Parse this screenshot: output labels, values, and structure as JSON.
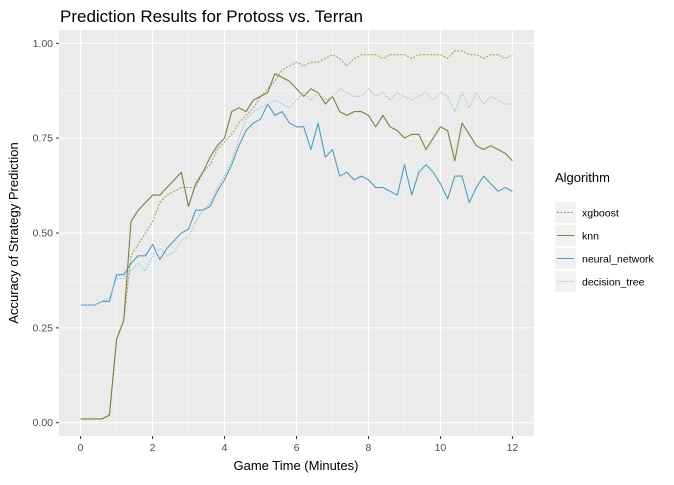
{
  "chart_data": {
    "type": "line",
    "title": "Prediction Results for Protoss vs. Terran",
    "xlabel": "Game Time (Minutes)",
    "ylabel": "Accuracy of Strategy Prediction",
    "xlim": [
      -0.6,
      12.6
    ],
    "ylim": [
      -0.035,
      1.035
    ],
    "x_ticks": [
      0,
      2,
      4,
      6,
      8,
      10,
      12
    ],
    "y_ticks": [
      0.0,
      0.25,
      0.5,
      0.75,
      1.0
    ],
    "x_tick_labels": [
      "0",
      "2",
      "4",
      "6",
      "8",
      "10",
      "12"
    ],
    "y_tick_labels": [
      "0.00",
      "0.25",
      "0.50",
      "0.75",
      "1.00"
    ],
    "grid": true,
    "legend": {
      "title": "Algorithm",
      "position": "right"
    },
    "series": [
      {
        "name": "xgboost",
        "color": "#a3a65a",
        "dash": "2,1.5",
        "x": [
          0,
          0.2,
          0.4,
          0.6,
          0.8,
          1.0,
          1.2,
          1.4,
          1.6,
          1.8,
          2.0,
          2.2,
          2.4,
          2.6,
          2.8,
          3.0,
          3.2,
          3.4,
          3.6,
          3.8,
          4.0,
          4.2,
          4.4,
          4.6,
          4.8,
          5.0,
          5.2,
          5.4,
          5.6,
          5.8,
          6.0,
          6.2,
          6.4,
          6.6,
          6.8,
          7.0,
          7.2,
          7.4,
          7.6,
          7.8,
          8.0,
          8.2,
          8.4,
          8.6,
          8.8,
          9.0,
          9.2,
          9.4,
          9.6,
          9.8,
          10.0,
          10.2,
          10.4,
          10.6,
          10.8,
          11.0,
          11.2,
          11.4,
          11.6,
          11.8,
          12.0
        ],
        "values": [
          0.01,
          0.01,
          0.01,
          0.01,
          0.02,
          0.22,
          0.27,
          0.44,
          0.47,
          0.5,
          0.53,
          0.58,
          0.6,
          0.61,
          0.62,
          0.62,
          0.62,
          0.66,
          0.68,
          0.72,
          0.74,
          0.76,
          0.79,
          0.81,
          0.83,
          0.86,
          0.88,
          0.9,
          0.93,
          0.94,
          0.95,
          0.94,
          0.95,
          0.95,
          0.96,
          0.97,
          0.96,
          0.94,
          0.96,
          0.97,
          0.97,
          0.97,
          0.96,
          0.97,
          0.97,
          0.97,
          0.96,
          0.97,
          0.97,
          0.97,
          0.97,
          0.96,
          0.98,
          0.98,
          0.97,
          0.97,
          0.96,
          0.97,
          0.97,
          0.96,
          0.97
        ]
      },
      {
        "name": "knn",
        "color": "#7d7f3e",
        "dash": "",
        "x": [
          0,
          0.2,
          0.4,
          0.6,
          0.8,
          1.0,
          1.2,
          1.4,
          1.6,
          1.8,
          2.0,
          2.2,
          2.4,
          2.6,
          2.8,
          3.0,
          3.2,
          3.4,
          3.6,
          3.8,
          4.0,
          4.2,
          4.4,
          4.6,
          4.8,
          5.0,
          5.2,
          5.4,
          5.6,
          5.8,
          6.0,
          6.2,
          6.4,
          6.6,
          6.8,
          7.0,
          7.2,
          7.4,
          7.6,
          7.8,
          8.0,
          8.2,
          8.4,
          8.6,
          8.8,
          9.0,
          9.2,
          9.4,
          9.6,
          9.8,
          10.0,
          10.2,
          10.4,
          10.6,
          10.8,
          11.0,
          11.2,
          11.4,
          11.6,
          11.8,
          12.0
        ],
        "values": [
          0.01,
          0.01,
          0.01,
          0.01,
          0.02,
          0.22,
          0.27,
          0.53,
          0.56,
          0.58,
          0.6,
          0.6,
          0.62,
          0.64,
          0.66,
          0.57,
          0.63,
          0.66,
          0.7,
          0.73,
          0.75,
          0.82,
          0.83,
          0.82,
          0.85,
          0.86,
          0.87,
          0.92,
          0.91,
          0.9,
          0.88,
          0.86,
          0.88,
          0.87,
          0.84,
          0.86,
          0.82,
          0.81,
          0.82,
          0.82,
          0.81,
          0.78,
          0.81,
          0.78,
          0.77,
          0.75,
          0.76,
          0.76,
          0.72,
          0.75,
          0.78,
          0.77,
          0.69,
          0.79,
          0.76,
          0.73,
          0.72,
          0.73,
          0.72,
          0.71,
          0.69
        ]
      },
      {
        "name": "neural_network",
        "color": "#4a9fbf",
        "dash": "",
        "x": [
          0,
          0.2,
          0.4,
          0.6,
          0.8,
          1.0,
          1.2,
          1.4,
          1.6,
          1.8,
          2.0,
          2.2,
          2.4,
          2.6,
          2.8,
          3.0,
          3.2,
          3.4,
          3.6,
          3.8,
          4.0,
          4.2,
          4.4,
          4.6,
          4.8,
          5.0,
          5.2,
          5.4,
          5.6,
          5.8,
          6.0,
          6.2,
          6.4,
          6.6,
          6.8,
          7.0,
          7.2,
          7.4,
          7.6,
          7.8,
          8.0,
          8.2,
          8.4,
          8.6,
          8.8,
          9.0,
          9.2,
          9.4,
          9.6,
          9.8,
          10.0,
          10.2,
          10.4,
          10.6,
          10.8,
          11.0,
          11.2,
          11.4,
          11.6,
          11.8,
          12.0
        ],
        "values": [
          0.31,
          0.31,
          0.31,
          0.32,
          0.32,
          0.39,
          0.39,
          0.42,
          0.44,
          0.44,
          0.47,
          0.43,
          0.46,
          0.48,
          0.5,
          0.51,
          0.56,
          0.56,
          0.57,
          0.61,
          0.64,
          0.68,
          0.73,
          0.77,
          0.79,
          0.8,
          0.84,
          0.81,
          0.82,
          0.79,
          0.78,
          0.78,
          0.72,
          0.79,
          0.7,
          0.72,
          0.65,
          0.66,
          0.64,
          0.65,
          0.64,
          0.62,
          0.62,
          0.61,
          0.6,
          0.68,
          0.6,
          0.66,
          0.68,
          0.66,
          0.63,
          0.59,
          0.65,
          0.65,
          0.58,
          0.62,
          0.65,
          0.63,
          0.61,
          0.62,
          0.61
        ]
      },
      {
        "name": "decision_tree",
        "color": "#9ac4d6",
        "dash": "1.5,1.5",
        "x": [
          0,
          0.2,
          0.4,
          0.6,
          0.8,
          1.0,
          1.2,
          1.4,
          1.6,
          1.8,
          2.0,
          2.2,
          2.4,
          2.6,
          2.8,
          3.0,
          3.2,
          3.4,
          3.6,
          3.8,
          4.0,
          4.2,
          4.4,
          4.6,
          4.8,
          5.0,
          5.2,
          5.4,
          5.6,
          5.8,
          6.0,
          6.2,
          6.4,
          6.6,
          6.8,
          7.0,
          7.2,
          7.4,
          7.6,
          7.8,
          8.0,
          8.2,
          8.4,
          8.6,
          8.8,
          9.0,
          9.2,
          9.4,
          9.6,
          9.8,
          10.0,
          10.2,
          10.4,
          10.6,
          10.8,
          11.0,
          11.2,
          11.4,
          11.6,
          11.8,
          12.0
        ],
        "values": [
          0.31,
          0.31,
          0.31,
          0.32,
          0.33,
          0.38,
          0.38,
          0.4,
          0.42,
          0.4,
          0.44,
          0.46,
          0.44,
          0.45,
          0.48,
          0.49,
          0.53,
          0.56,
          0.58,
          0.62,
          0.65,
          0.69,
          0.75,
          0.8,
          0.82,
          0.83,
          0.84,
          0.85,
          0.84,
          0.83,
          0.85,
          0.87,
          0.85,
          0.87,
          0.85,
          0.86,
          0.88,
          0.87,
          0.86,
          0.86,
          0.88,
          0.86,
          0.87,
          0.85,
          0.87,
          0.86,
          0.85,
          0.86,
          0.87,
          0.85,
          0.87,
          0.86,
          0.82,
          0.87,
          0.83,
          0.87,
          0.84,
          0.86,
          0.85,
          0.84,
          0.84
        ]
      }
    ]
  }
}
